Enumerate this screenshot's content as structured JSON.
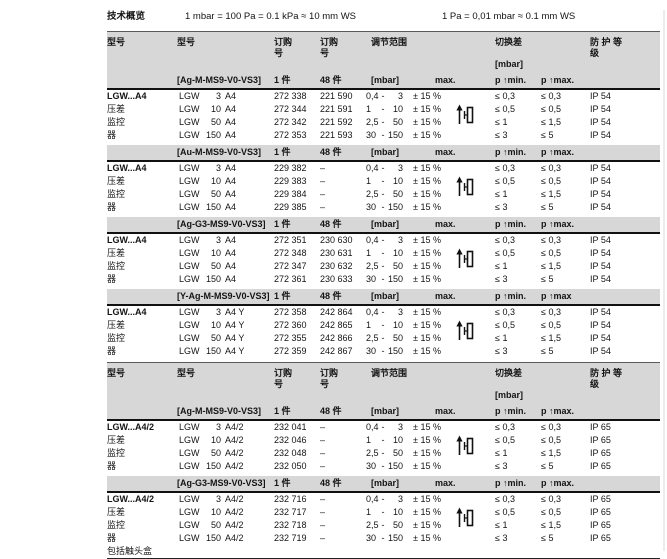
{
  "page": {
    "title": "技术概览",
    "conversion1": "1 mbar = 100 Pa = 0.1 kPa ≈ 10 mm WS",
    "conversion2": "1 Pa = 0,01 mbar ≈ 0.1 mm WS"
  },
  "columns": {
    "type": "型号",
    "model": "型号",
    "order": "订购\n号",
    "range": "调节范围",
    "diff": "切换差\n\n[mbar]",
    "protection": "防 护 等\n级",
    "range_sep": "-"
  },
  "icons": {
    "pressure_switch": "pressure-switch-icon"
  },
  "tables": [
    {
      "blocks": [
        {
          "side": [
            "LGW...A4",
            "压差",
            "监控",
            "器"
          ],
          "variant": "[Ag-M-MS9-V0-VS3]",
          "qty1": "1 件",
          "qty2": "48 件",
          "range_hdr": "[mbar]",
          "max_hdr": "max.",
          "pmin_hdr": "p ↑min.",
          "pmax_hdr": "p ↑max.",
          "rows": [
            {
              "prefix": "LGW",
              "size": "3",
              "suffix": "A4",
              "order1": "272 338",
              "order2": "221 590",
              "lo": "0,4",
              "hi": "3",
              "tol": "± 15 %",
              "pmin": "≤ 0,3",
              "pmax": "≤ 0,3",
              "ip": "IP 54"
            },
            {
              "prefix": "LGW",
              "size": "10",
              "suffix": "A4",
              "order1": "272 344",
              "order2": "221 591",
              "lo": "1",
              "hi": "10",
              "tol": "± 15 %",
              "pmin": "≤ 0,5",
              "pmax": "≤ 0,5",
              "ip": "IP 54"
            },
            {
              "prefix": "LGW",
              "size": "50",
              "suffix": "A4",
              "order1": "272 342",
              "order2": "221 592",
              "lo": "2,5",
              "hi": "50",
              "tol": "± 15 %",
              "pmin": "≤ 1",
              "pmax": "≤ 1,5",
              "ip": "IP 54"
            },
            {
              "prefix": "LGW",
              "size": "150",
              "suffix": "A4",
              "order1": "272 353",
              "order2": "221 593",
              "lo": "30",
              "hi": "150",
              "tol": "± 15 %",
              "pmin": "≤ 3",
              "pmax": "≤ 5",
              "ip": "IP 54"
            }
          ]
        },
        {
          "side": [
            "LGW...A4",
            "压差",
            "监控",
            "器"
          ],
          "variant": "[Au-M-MS9-V0-VS3]",
          "qty1": "1 件",
          "qty2": "48 件",
          "range_hdr": "[mbar]",
          "max_hdr": "max.",
          "pmin_hdr": "p ↑min.",
          "pmax_hdr": "p ↑max.",
          "rows": [
            {
              "prefix": "LGW",
              "size": "3",
              "suffix": "A4",
              "order1": "229 382",
              "order2": "–",
              "lo": "0,4",
              "hi": "3",
              "tol": "± 15 %",
              "pmin": "≤ 0,3",
              "pmax": "≤ 0,3",
              "ip": "IP 54"
            },
            {
              "prefix": "LGW",
              "size": "10",
              "suffix": "A4",
              "order1": "229 383",
              "order2": "–",
              "lo": "1",
              "hi": "10",
              "tol": "± 15 %",
              "pmin": "≤ 0,5",
              "pmax": "≤ 0,5",
              "ip": "IP 54"
            },
            {
              "prefix": "LGW",
              "size": "50",
              "suffix": "A4",
              "order1": "229 384",
              "order2": "–",
              "lo": "2,5",
              "hi": "50",
              "tol": "± 15 %",
              "pmin": "≤ 1",
              "pmax": "≤ 1,5",
              "ip": "IP 54"
            },
            {
              "prefix": "LGW",
              "size": "150",
              "suffix": "A4",
              "order1": "229 385",
              "order2": "–",
              "lo": "30",
              "hi": "150",
              "tol": "± 15 %",
              "pmin": "≤ 3",
              "pmax": "≤ 5",
              "ip": "IP 54"
            }
          ]
        },
        {
          "side": [
            "LGW...A4",
            "压差",
            "监控",
            "器"
          ],
          "variant": "[Ag-G3-MS9-V0-VS3]",
          "qty1": "1 件",
          "qty2": "48 件",
          "range_hdr": "[mbar]",
          "max_hdr": "max.",
          "pmin_hdr": "p ↑min.",
          "pmax_hdr": "p ↑max.",
          "rows": [
            {
              "prefix": "LGW",
              "size": "3",
              "suffix": "A4",
              "order1": "272 351",
              "order2": "230 630",
              "lo": "0,4",
              "hi": "3",
              "tol": "± 15 %",
              "pmin": "≤ 0,3",
              "pmax": "≤ 0,3",
              "ip": "IP 54"
            },
            {
              "prefix": "LGW",
              "size": "10",
              "suffix": "A4",
              "order1": "272 348",
              "order2": "230 631",
              "lo": "1",
              "hi": "10",
              "tol": "± 15 %",
              "pmin": "≤ 0,5",
              "pmax": "≤ 0,5",
              "ip": "IP 54"
            },
            {
              "prefix": "LGW",
              "size": "50",
              "suffix": "A4",
              "order1": "272 347",
              "order2": "230 632",
              "lo": "2,5",
              "hi": "50",
              "tol": "± 15 %",
              "pmin": "≤ 1",
              "pmax": "≤ 1,5",
              "ip": "IP 54"
            },
            {
              "prefix": "LGW",
              "size": "150",
              "suffix": "A4",
              "order1": "272 361",
              "order2": "230 633",
              "lo": "30",
              "hi": "150",
              "tol": "± 15 %",
              "pmin": "≤ 3",
              "pmax": "≤ 5",
              "ip": "IP 54"
            }
          ]
        },
        {
          "side": [
            "LGW...A4",
            "压差",
            "监控",
            "器"
          ],
          "variant": "[Y-Ag-M-MS9-V0-VS3]",
          "qty1": "1 件",
          "qty2": "48 件",
          "range_hdr": "[mbar]",
          "max_hdr": "max.",
          "pmin_hdr": "p ↑min.",
          "pmax_hdr": "p ↑max",
          "rows": [
            {
              "prefix": "LGW",
              "size": "3",
              "suffix": "A4 Y",
              "order1": "272 358",
              "order2": "242 864",
              "lo": "0,4",
              "hi": "3",
              "tol": "± 15 %",
              "pmin": "≤ 0,3",
              "pmax": "≤ 0,3",
              "ip": "IP 54"
            },
            {
              "prefix": "LGW",
              "size": "10",
              "suffix": "A4 Y",
              "order1": "272 360",
              "order2": "242 865",
              "lo": "1",
              "hi": "10",
              "tol": "± 15 %",
              "pmin": "≤ 0,5",
              "pmax": "≤ 0,5",
              "ip": "IP 54"
            },
            {
              "prefix": "LGW",
              "size": "50",
              "suffix": "A4 Y",
              "order1": "272 355",
              "order2": "242 866",
              "lo": "2,5",
              "hi": "50",
              "tol": "± 15 %",
              "pmin": "≤ 1",
              "pmax": "≤ 1,5",
              "ip": "IP 54"
            },
            {
              "prefix": "LGW",
              "size": "150",
              "suffix": "A4 Y",
              "order1": "272 359",
              "order2": "242 867",
              "lo": "30",
              "hi": "150",
              "tol": "± 15 %",
              "pmin": "≤ 3",
              "pmax": "≤ 5",
              "ip": "IP 54"
            }
          ]
        }
      ]
    },
    {
      "footnote": "包括触头盒",
      "blocks": [
        {
          "side": [
            "LGW...A4/2",
            "压差",
            "监控",
            "器"
          ],
          "variant": "[Ag-M-MS9-V0-VS3]",
          "qty1": "1 件",
          "qty2": "48 件",
          "range_hdr": "[mbar]",
          "max_hdr": "max.",
          "pmin_hdr": "p ↑min.",
          "pmax_hdr": "p ↑max.",
          "rows": [
            {
              "prefix": "LGW",
              "size": "3",
              "suffix": "A4/2",
              "order1": "232 041",
              "order2": "–",
              "lo": "0,4",
              "hi": "3",
              "tol": "± 15 %",
              "pmin": "≤ 0,3",
              "pmax": "≤ 0,3",
              "ip": "IP 65"
            },
            {
              "prefix": "LGW",
              "size": "10",
              "suffix": "A4/2",
              "order1": "232 046",
              "order2": "–",
              "lo": "1",
              "hi": "10",
              "tol": "± 15 %",
              "pmin": "≤ 0,5",
              "pmax": "≤ 0,5",
              "ip": "IP 65"
            },
            {
              "prefix": "LGW",
              "size": "50",
              "suffix": "A4/2",
              "order1": "232 048",
              "order2": "–",
              "lo": "2,5",
              "hi": "50",
              "tol": "± 15 %",
              "pmin": "≤ 1",
              "pmax": "≤ 1,5",
              "ip": "IP 65"
            },
            {
              "prefix": "LGW",
              "size": "150",
              "suffix": "A4/2",
              "order1": "232 050",
              "order2": "–",
              "lo": "30",
              "hi": "150",
              "tol": "± 15 %",
              "pmin": "≤ 3",
              "pmax": "≤ 5",
              "ip": "IP 65"
            }
          ]
        },
        {
          "side": [
            "LGW...A4/2",
            "压差",
            "监控",
            "器"
          ],
          "variant": "[Ag-G3-MS9-V0-VS3]",
          "qty1": "1 件",
          "qty2": "48 件",
          "range_hdr": "[mbar]",
          "max_hdr": "max.",
          "pmin_hdr": "p ↑min.",
          "pmax_hdr": "p ↑max.",
          "rows": [
            {
              "prefix": "LGW",
              "size": "3",
              "suffix": "A4/2",
              "order1": "232 716",
              "order2": "–",
              "lo": "0,4",
              "hi": "3",
              "tol": "± 15 %",
              "pmin": "≤ 0,3",
              "pmax": "≤ 0,3",
              "ip": "IP 65"
            },
            {
              "prefix": "LGW",
              "size": "10",
              "suffix": "A4/2",
              "order1": "232 717",
              "order2": "–",
              "lo": "1",
              "hi": "10",
              "tol": "± 15 %",
              "pmin": "≤ 0,5",
              "pmax": "≤ 0,5",
              "ip": "IP 65"
            },
            {
              "prefix": "LGW",
              "size": "50",
              "suffix": "A4/2",
              "order1": "232 718",
              "order2": "–",
              "lo": "2,5",
              "hi": "50",
              "tol": "± 15 %",
              "pmin": "≤ 1",
              "pmax": "≤ 1,5",
              "ip": "IP 65"
            },
            {
              "prefix": "LGW",
              "size": "150",
              "suffix": "A4/2",
              "order1": "232 719",
              "order2": "–",
              "lo": "30",
              "hi": "150",
              "tol": "± 15 %",
              "pmin": "≤ 3",
              "pmax": "≤ 5",
              "ip": "IP 65"
            }
          ]
        }
      ]
    }
  ]
}
